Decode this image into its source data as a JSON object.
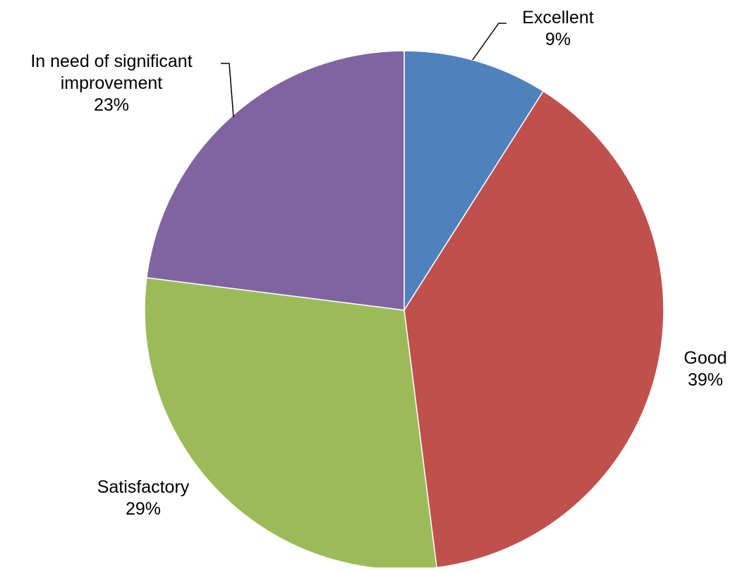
{
  "chart_data": {
    "type": "pie",
    "start_angle": "12 o'clock, clockwise",
    "categories": [
      "Excellent",
      "Good",
      "Satisfactory",
      "In need of significant improvement"
    ],
    "values": [
      9,
      39,
      29,
      23
    ],
    "value_labels": [
      "9%",
      "39%",
      "29%",
      "23%"
    ],
    "colors": [
      "#4F81BD",
      "#C0504D",
      "#9BBB59",
      "#8064A2"
    ],
    "label_lines": [
      [
        "Excellent",
        "9%"
      ],
      [
        "Good",
        "39%"
      ],
      [
        "Satisfactory",
        "29%"
      ],
      [
        "In need of significant",
        "improvement",
        "23%"
      ]
    ],
    "legend": "none",
    "title": ""
  }
}
